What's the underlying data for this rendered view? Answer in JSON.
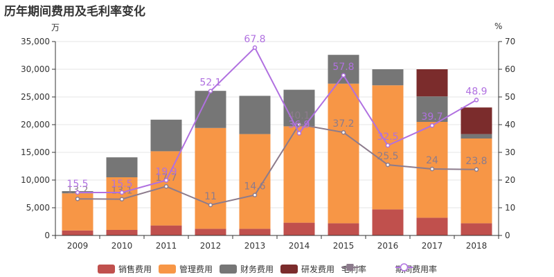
{
  "title": "历年期间费用及毛利率变化",
  "left_unit": "万",
  "right_unit": "%",
  "colors": {
    "sales": "#c0504d",
    "admin": "#f79646",
    "finance": "#767676",
    "rnd": "#7b2c2c",
    "gross": "#8c7b8c",
    "period": "#b070e0",
    "axis": "#333333",
    "grid": "#e6e6e6"
  },
  "chart_data": {
    "type": "bar+line",
    "categories": [
      "2009",
      "2010",
      "2011",
      "2012",
      "2013",
      "2014",
      "2015",
      "2016",
      "2017",
      "2018"
    ],
    "y_left": {
      "min": 0,
      "max": 35000,
      "ticks": [
        0,
        5000,
        10000,
        15000,
        20000,
        25000,
        30000,
        35000
      ],
      "tick_labels": [
        "0",
        "5,000",
        "10,000",
        "15,000",
        "20,000",
        "25,000",
        "30,000",
        "35,000"
      ]
    },
    "y_right": {
      "min": 0,
      "max": 70,
      "ticks": [
        0,
        10,
        20,
        30,
        40,
        50,
        60,
        70
      ],
      "tick_labels": [
        "0",
        "10",
        "20",
        "30",
        "40",
        "50",
        "60",
        "70"
      ]
    },
    "bar_series": [
      {
        "key": "sales",
        "name": "销售费用",
        "values": [
          900,
          1000,
          1800,
          1200,
          1200,
          2300,
          2200,
          4700,
          3200,
          2200
        ]
      },
      {
        "key": "admin",
        "name": "管理费用",
        "values": [
          6700,
          9500,
          13400,
          18200,
          17100,
          17400,
          25200,
          22400,
          17300,
          15300
        ]
      },
      {
        "key": "finance",
        "name": "财务费用",
        "values": [
          400,
          3600,
          5700,
          6700,
          6900,
          6600,
          5200,
          2900,
          4600,
          800
        ]
      },
      {
        "key": "rnd",
        "name": "研发费用",
        "values": [
          0,
          0,
          0,
          0,
          0,
          0,
          0,
          0,
          4900,
          4800
        ]
      }
    ],
    "line_series": [
      {
        "key": "gross",
        "name": "毛利率",
        "values": [
          13.2,
          13.1,
          17.7,
          11,
          14.6,
          40.1,
          37.2,
          25.5,
          24,
          23.8
        ],
        "labels": [
          "13.2",
          "13.1",
          "17.7",
          "11",
          "14.6",
          "40.1",
          "37.2",
          "25.5",
          "24",
          "23.8"
        ]
      },
      {
        "key": "period",
        "name": "期间费用率",
        "values": [
          15.5,
          15.5,
          19.9,
          52.1,
          67.8,
          36.9,
          57.8,
          32.5,
          39.7,
          48.9
        ],
        "labels": [
          "15.5",
          "15.5",
          "19.9",
          "52.1",
          "67.8",
          "36.9",
          "57.8",
          "32.5",
          "39.7",
          "48.9"
        ]
      }
    ]
  },
  "legend": [
    {
      "key": "sales",
      "label": "销售费用",
      "kind": "bar"
    },
    {
      "key": "admin",
      "label": "管理费用",
      "kind": "bar"
    },
    {
      "key": "finance",
      "label": "财务费用",
      "kind": "bar"
    },
    {
      "key": "rnd",
      "label": "研发费用",
      "kind": "bar"
    },
    {
      "key": "gross",
      "label": "毛利率",
      "kind": "line-square"
    },
    {
      "key": "period",
      "label": "期间费用率",
      "kind": "line-circle"
    }
  ]
}
